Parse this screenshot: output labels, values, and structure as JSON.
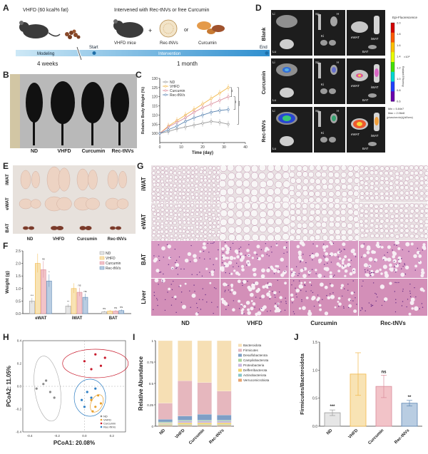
{
  "colors": {
    "nd": "#9a9a9a",
    "vhfd": "#f2b84a",
    "curcumin": "#d98b9a",
    "rec": "#5c86b3",
    "vhfd_fill": "#f8e3b4",
    "cur_fill": "#f2c3c8",
    "rec_fill": "#b9cde2",
    "timeline_bar": "#3ea2d6",
    "if_bg": "#1d1d1d",
    "eosin": "#d48fb4",
    "adipose_bg": "#e9e1e3"
  },
  "panel_labels": [
    "A",
    "B",
    "C",
    "D",
    "E",
    "F",
    "G",
    "H",
    "I",
    "J"
  ],
  "panel_a": {
    "left_caption": "VHFD (60 kcal% fat)",
    "right_caption": "Intervened with Rec-tNVs or free Curcumin",
    "vhfd_mice": "VHFD mice",
    "rec_label": "Rec-tNVs",
    "or_label": "or",
    "curcumin_label": "Curcumin",
    "plus": "+",
    "bar_modeling": "Modeling",
    "bar_start": "Start",
    "bar_intervention": "Intervention",
    "bar_end": "End",
    "duration_left": "4 weeks",
    "duration_right": "1 month"
  },
  "panel_b": {
    "labels": [
      "ND",
      "VHFD",
      "Curcumin",
      "Rec-tNVs"
    ]
  },
  "panel_d": {
    "rows": [
      "Blank",
      "Curcumin",
      "Rec-tNVs"
    ],
    "organ_labels": [
      "Li",
      "Sp",
      "H",
      "Lu",
      "Ki",
      "eWAT",
      "iWAT",
      "BAT"
    ],
    "scale_title": "Epi-Fluorescence",
    "scale_ticks": [
      "2.0",
      "1.8",
      "1.6",
      "1.4",
      "1.2",
      "1.0",
      "0.8",
      "0.6"
    ],
    "scale_exp": "×10⁸",
    "scale_unit": "Radiant Efficiency",
    "scale_min": "Min = 5.84e7",
    "scale_max": "Max = 2.06e8",
    "scale_units_note": "(p/sec/cm²/sr)/(μW/cm²)"
  },
  "panel_e": {
    "rows": [
      "iWAT",
      "eWAT",
      "BAT"
    ],
    "cols": [
      "ND",
      "VHFD",
      "Curcumin",
      "Rec-tNVs"
    ]
  },
  "panel_g": {
    "rows": [
      "iWAT",
      "eWAT",
      "BAT",
      "Liver"
    ],
    "cols": [
      "ND",
      "VHFD",
      "Curcumin",
      "Rec-tNVs"
    ]
  },
  "chart_data": [
    {
      "panel": "C",
      "type": "line",
      "xlabel": "Time (day)",
      "ylabel": "Relative Body Weight (%)",
      "xlim": [
        0,
        40
      ],
      "ylim": [
        95,
        130
      ],
      "xticks": [
        0,
        10,
        20,
        30,
        40
      ],
      "yticks": [
        100,
        105,
        110,
        115,
        120,
        125,
        130
      ],
      "x": [
        0,
        4,
        8,
        12,
        16,
        20,
        24,
        28,
        32
      ],
      "series": [
        {
          "name": "ND",
          "values": [
            100,
            101,
            102.5,
            103.5,
            104.5,
            105.5,
            106.5,
            106,
            105
          ]
        },
        {
          "name": "VHFD",
          "values": [
            100,
            104,
            107,
            110,
            113,
            116,
            119,
            122,
            125
          ]
        },
        {
          "name": "Curcumin",
          "values": [
            100,
            103.5,
            106,
            108.5,
            111.5,
            114,
            116,
            118,
            120
          ]
        },
        {
          "name": "Rec-tNVs",
          "values": [
            100,
            102,
            104,
            106.5,
            108.5,
            110,
            111.5,
            112.5,
            113
          ]
        }
      ],
      "significance": [
        "**",
        "**",
        "****"
      ],
      "legend": "top-left"
    },
    {
      "panel": "F",
      "type": "bar",
      "ylabel": "Weight (g)",
      "categories": [
        "eWAT",
        "iWAT",
        "BAT"
      ],
      "ylim": [
        0,
        2.5
      ],
      "yticks": [
        0.0,
        0.5,
        1.0,
        1.5,
        2.0,
        2.5
      ],
      "series": [
        {
          "name": "ND",
          "values": [
            0.5,
            0.3,
            0.07
          ]
        },
        {
          "name": "VHFD",
          "values": [
            2.0,
            1.0,
            0.1
          ]
        },
        {
          "name": "Curcumin",
          "values": [
            1.75,
            0.85,
            0.1
          ]
        },
        {
          "name": "Rec-tNVs",
          "values": [
            1.3,
            0.65,
            0.12
          ]
        }
      ],
      "annotations": [
        [
          "***",
          "",
          "ns",
          "*"
        ],
        [
          "**",
          "",
          "ns",
          "ns"
        ],
        [
          "ns",
          "",
          "ns",
          "ns"
        ]
      ],
      "legend": "top-right"
    },
    {
      "panel": "H",
      "type": "scatter",
      "xlabel": "PCoA1: 20.08%",
      "ylabel": "PCoA2: 11.05%",
      "xlim": [
        -0.45,
        0.3
      ],
      "ylim": [
        -0.4,
        0.4
      ],
      "xticks": [
        -0.4,
        -0.2,
        0.0,
        0.2
      ],
      "yticks": [
        -0.4,
        -0.2,
        0.0,
        0.2,
        0.4
      ],
      "series": [
        {
          "name": "ND",
          "points": [
            [
              -0.3,
              0.02
            ],
            [
              -0.25,
              -0.05
            ],
            [
              -0.28,
              0.05
            ],
            [
              -0.22,
              -0.1
            ],
            [
              -0.35,
              -0.02
            ]
          ]
        },
        {
          "name": "VHFD",
          "points": [
            [
              0.05,
              -0.12
            ],
            [
              0.08,
              -0.18
            ],
            [
              0.1,
              -0.08
            ],
            [
              0.06,
              -0.22
            ],
            [
              0.12,
              -0.15
            ]
          ]
        },
        {
          "name": "Curcumin",
          "points": [
            [
              0.0,
              0.22
            ],
            [
              0.08,
              0.28
            ],
            [
              0.12,
              0.18
            ],
            [
              0.05,
              0.15
            ],
            [
              0.15,
              0.25
            ]
          ]
        },
        {
          "name": "Rec-tNVs",
          "points": [
            [
              0.02,
              -0.05
            ],
            [
              0.05,
              -0.1
            ],
            [
              -0.02,
              -0.12
            ],
            [
              0.08,
              -0.02
            ],
            [
              0.0,
              -0.18
            ]
          ]
        }
      ],
      "legend": "bottom-right"
    },
    {
      "panel": "I",
      "type": "bar",
      "stacked": true,
      "ylabel": "Relative Abundance",
      "categories": [
        "ND",
        "VHFD",
        "Curcumin",
        "Rec-tNVs"
      ],
      "ylim": [
        0,
        1
      ],
      "yticks": [
        0,
        0.25,
        0.5,
        0.75,
        1.0
      ],
      "series": [
        {
          "name": "Verrucomicrobiota",
          "values": [
            0.01,
            0.01,
            0.01,
            0.01
          ]
        },
        {
          "name": "Actinobacteriota",
          "values": [
            0.01,
            0.01,
            0.01,
            0.01
          ]
        },
        {
          "name": "Defferribacterota",
          "values": [
            0.01,
            0.02,
            0.02,
            0.02
          ]
        },
        {
          "name": "Proteobacteria",
          "values": [
            0.01,
            0.02,
            0.02,
            0.02
          ]
        },
        {
          "name": "Campilobacterota",
          "values": [
            0.01,
            0.01,
            0.01,
            0.01
          ]
        },
        {
          "name": "Desulfobacterota",
          "values": [
            0.03,
            0.05,
            0.07,
            0.06
          ]
        },
        {
          "name": "Firmicutes",
          "values": [
            0.19,
            0.41,
            0.37,
            0.28
          ]
        },
        {
          "name": "Bacteroidota",
          "values": [
            0.73,
            0.47,
            0.49,
            0.59
          ]
        }
      ],
      "legend": "right"
    },
    {
      "panel": "J",
      "type": "bar",
      "ylabel": "Firmicutes/Bacteroidota",
      "categories": [
        "ND",
        "VHFD",
        "Curcumin",
        "Rec-tNVs"
      ],
      "ylim": [
        0,
        1.5
      ],
      "yticks": [
        0.0,
        0.5,
        1.0,
        1.5
      ],
      "values": [
        0.24,
        0.93,
        0.71,
        0.41
      ],
      "errors": [
        0.05,
        0.38,
        0.2,
        0.05
      ],
      "annotations": [
        "***",
        "",
        "ns",
        "**"
      ]
    }
  ]
}
